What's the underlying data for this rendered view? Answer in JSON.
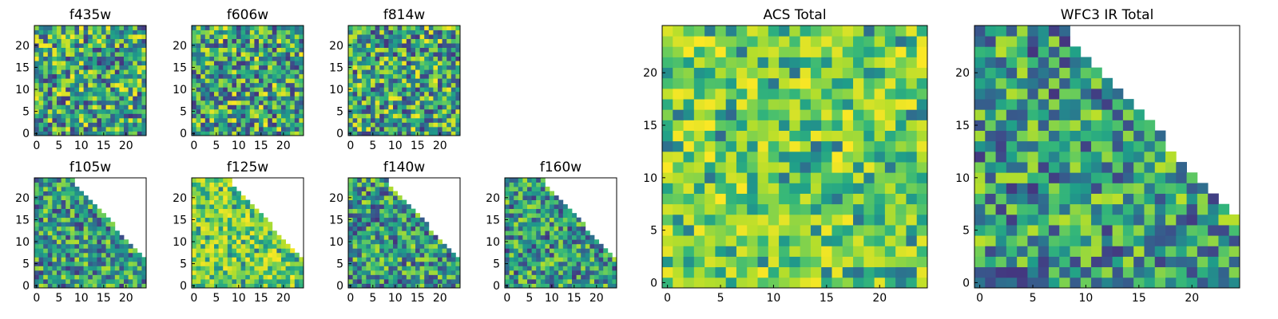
{
  "chart_data": [
    {
      "type": "heatmap",
      "title": "f435w",
      "region": "full",
      "seed": 11,
      "mode": "uniform",
      "xticks": [
        "0",
        "5",
        "10",
        "15",
        "20"
      ],
      "yticks": [
        "0",
        "5",
        "10",
        "15",
        "20"
      ],
      "xlim": [
        0,
        25
      ],
      "ylim": [
        0,
        25
      ],
      "colormap": "viridis"
    },
    {
      "type": "heatmap",
      "title": "f606w",
      "region": "full",
      "seed": 23,
      "mode": "uniform",
      "xticks": [
        "0",
        "5",
        "10",
        "15",
        "20"
      ],
      "yticks": [
        "0",
        "5",
        "10",
        "15",
        "20"
      ],
      "xlim": [
        0,
        25
      ],
      "ylim": [
        0,
        25
      ],
      "colormap": "viridis"
    },
    {
      "type": "heatmap",
      "title": "f814w",
      "region": "full",
      "seed": 37,
      "mode": "uniform",
      "xticks": [
        "0",
        "5",
        "10",
        "15",
        "20"
      ],
      "yticks": [
        "0",
        "5",
        "10",
        "15",
        "20"
      ],
      "xlim": [
        0,
        25
      ],
      "ylim": [
        0,
        25
      ],
      "colormap": "viridis"
    },
    {
      "type": "heatmap",
      "title": "f105w",
      "region": "triangle",
      "seed": 41,
      "mode": "dark",
      "xticks": [
        "0",
        "5",
        "10",
        "15",
        "20"
      ],
      "yticks": [
        "0",
        "5",
        "10",
        "15",
        "20"
      ],
      "xlim": [
        0,
        25
      ],
      "ylim": [
        0,
        25
      ],
      "colormap": "viridis"
    },
    {
      "type": "heatmap",
      "title": "f125w",
      "region": "triangle",
      "seed": 53,
      "mode": "bright",
      "xticks": [
        "0",
        "5",
        "10",
        "15",
        "20"
      ],
      "yticks": [
        "0",
        "5",
        "10",
        "15",
        "20"
      ],
      "xlim": [
        0,
        25
      ],
      "ylim": [
        0,
        25
      ],
      "colormap": "viridis"
    },
    {
      "type": "heatmap",
      "title": "f140w",
      "region": "triangle",
      "seed": 67,
      "mode": "dark",
      "xticks": [
        "0",
        "5",
        "10",
        "15",
        "20"
      ],
      "yticks": [
        "0",
        "5",
        "10",
        "15",
        "20"
      ],
      "xlim": [
        0,
        25
      ],
      "ylim": [
        0,
        25
      ],
      "colormap": "viridis"
    },
    {
      "type": "heatmap",
      "title": "f160w",
      "region": "triangle",
      "seed": 71,
      "mode": "dark",
      "xticks": [
        "0",
        "5",
        "10",
        "15",
        "20"
      ],
      "yticks": [
        "0",
        "5",
        "10",
        "15",
        "20"
      ],
      "xlim": [
        0,
        25
      ],
      "ylim": [
        0,
        25
      ],
      "colormap": "viridis"
    },
    {
      "type": "heatmap",
      "title": "ACS Total",
      "region": "full",
      "seed": 83,
      "mode": "bright",
      "xticks": [
        "0",
        "5",
        "10",
        "15",
        "20"
      ],
      "yticks": [
        "0",
        "5",
        "10",
        "15",
        "20"
      ],
      "xlim": [
        0,
        25
      ],
      "ylim": [
        0,
        25
      ],
      "colormap": "viridis"
    },
    {
      "type": "heatmap",
      "title": "WFC3 IR Total",
      "region": "triangle",
      "seed": 97,
      "mode": "dark",
      "xticks": [
        "0",
        "5",
        "10",
        "15",
        "20"
      ],
      "yticks": [
        "0",
        "5",
        "10",
        "15",
        "20"
      ],
      "xlim": [
        0,
        25
      ],
      "ylim": [
        0,
        25
      ],
      "colormap": "viridis"
    }
  ]
}
